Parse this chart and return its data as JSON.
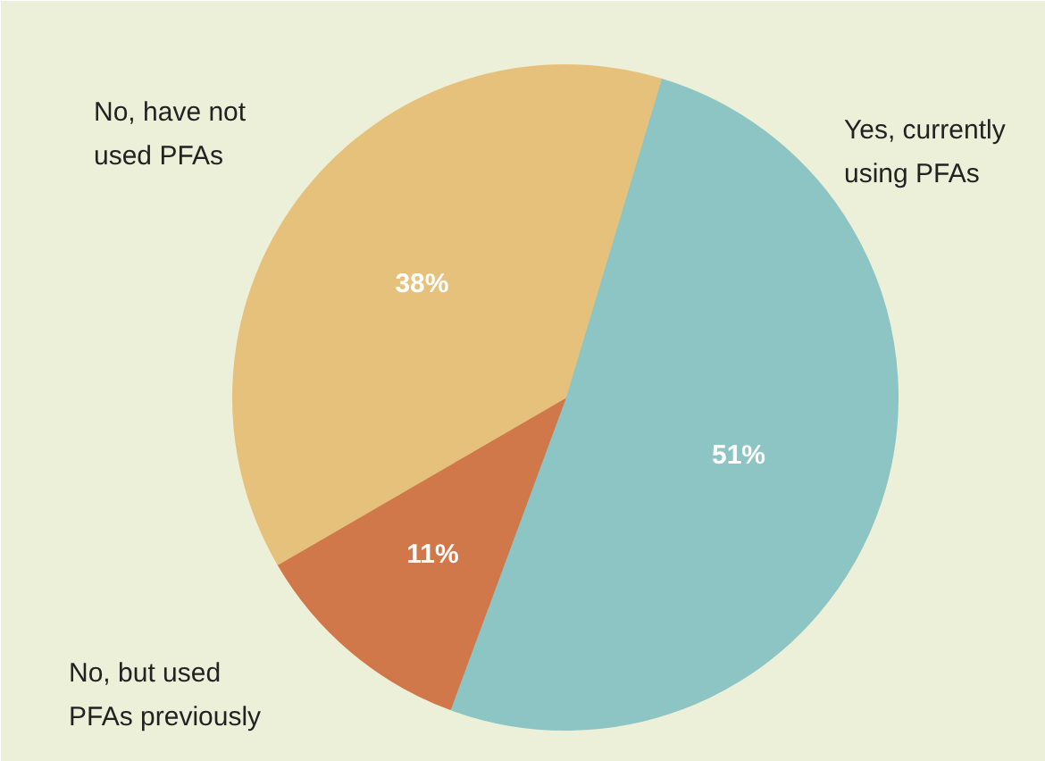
{
  "chart_data": {
    "type": "pie",
    "categories": [
      "Yes, currently using PFAs",
      "No, but used PFAs previously",
      "No, have not used PFAs"
    ],
    "values": [
      51,
      11,
      38
    ],
    "colors": [
      "#8cc5c4",
      "#d0784a",
      "#e5c17c"
    ],
    "value_labels": [
      "51%",
      "11%",
      "38%"
    ]
  }
}
